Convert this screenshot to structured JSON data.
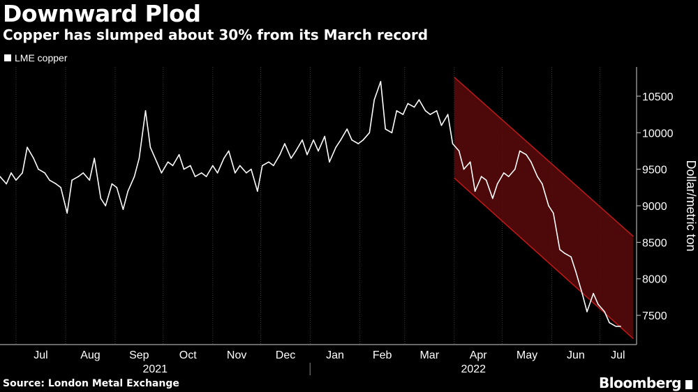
{
  "title": "Downward Plod",
  "subtitle": "Copper has slumped about 30% from its March record",
  "source": "Source: London Metal Exchange",
  "brand": "Bloomberg",
  "legend": "LME copper",
  "colors": {
    "background": "#000000",
    "line": "#ffffff",
    "channel_fill": "#5a0a0a",
    "channel_edge": "#c01818",
    "grid": "#3a3a3a"
  },
  "chart_data": {
    "type": "line",
    "title": "Downward Plod",
    "subtitle": "Copper has slumped about 30% from its March record",
    "ylabel": "Dollar/metric ton",
    "ylim": [
      7100,
      10900
    ],
    "yticks": [
      7500,
      8000,
      8500,
      9000,
      9500,
      10000,
      10500
    ],
    "y_axis_position": "right",
    "grid": "vertical dashed at month starts",
    "x_month_labels": [
      "Jul",
      "Aug",
      "Sep",
      "Oct",
      "Nov",
      "Dec",
      "Jan",
      "Feb",
      "Mar",
      "Apr",
      "May",
      "Jun",
      "Jul"
    ],
    "x_year_labels": [
      "2021",
      "2022"
    ],
    "x_month_starts": [
      "2021-07-01",
      "2021-08-01",
      "2021-09-01",
      "2021-10-01",
      "2021-11-01",
      "2021-12-01",
      "2022-01-01",
      "2022-02-01",
      "2022-03-01",
      "2022-04-01",
      "2022-05-01",
      "2022-06-01",
      "2022-07-01"
    ],
    "xlim": [
      "2021-06-21",
      "2022-07-24"
    ],
    "series": [
      {
        "name": "LME copper",
        "x": [
          "2021-06-21",
          "2021-06-25",
          "2021-06-28",
          "2021-07-01",
          "2021-07-05",
          "2021-07-08",
          "2021-07-12",
          "2021-07-15",
          "2021-07-19",
          "2021-07-22",
          "2021-07-26",
          "2021-07-29",
          "2021-08-02",
          "2021-08-05",
          "2021-08-09",
          "2021-08-12",
          "2021-08-16",
          "2021-08-19",
          "2021-08-23",
          "2021-08-26",
          "2021-08-30",
          "2021-09-02",
          "2021-09-06",
          "2021-09-09",
          "2021-09-13",
          "2021-09-16",
          "2021-09-20",
          "2021-09-23",
          "2021-09-27",
          "2021-09-30",
          "2021-10-04",
          "2021-10-07",
          "2021-10-11",
          "2021-10-14",
          "2021-10-18",
          "2021-10-21",
          "2021-10-25",
          "2021-10-28",
          "2021-11-01",
          "2021-11-04",
          "2021-11-08",
          "2021-11-11",
          "2021-11-15",
          "2021-11-18",
          "2021-11-22",
          "2021-11-25",
          "2021-11-29",
          "2021-12-02",
          "2021-12-06",
          "2021-12-09",
          "2021-12-13",
          "2021-12-16",
          "2021-12-20",
          "2021-12-23",
          "2021-12-27",
          "2021-12-30",
          "2022-01-03",
          "2022-01-06",
          "2022-01-10",
          "2022-01-13",
          "2022-01-17",
          "2022-01-20",
          "2022-01-24",
          "2022-01-27",
          "2022-01-31",
          "2022-02-03",
          "2022-02-07",
          "2022-02-10",
          "2022-02-14",
          "2022-02-17",
          "2022-02-21",
          "2022-02-24",
          "2022-02-28",
          "2022-03-03",
          "2022-03-07",
          "2022-03-10",
          "2022-03-14",
          "2022-03-17",
          "2022-03-21",
          "2022-03-24",
          "2022-03-28",
          "2022-03-31",
          "2022-04-04",
          "2022-04-07",
          "2022-04-11",
          "2022-04-14",
          "2022-04-18",
          "2022-04-21",
          "2022-04-25",
          "2022-04-28",
          "2022-05-02",
          "2022-05-05",
          "2022-05-09",
          "2022-05-12",
          "2022-05-16",
          "2022-05-19",
          "2022-05-23",
          "2022-05-26",
          "2022-05-30",
          "2022-06-02",
          "2022-06-06",
          "2022-06-09",
          "2022-06-13",
          "2022-06-16",
          "2022-06-20",
          "2022-06-23",
          "2022-06-27",
          "2022-06-30",
          "2022-07-04",
          "2022-07-07",
          "2022-07-11",
          "2022-07-14"
        ],
        "y": [
          9400,
          9300,
          9450,
          9350,
          9450,
          9800,
          9650,
          9500,
          9450,
          9350,
          9300,
          9250,
          8900,
          9350,
          9400,
          9450,
          9350,
          9650,
          9100,
          9000,
          9300,
          9250,
          8950,
          9200,
          9400,
          9650,
          10300,
          9800,
          9600,
          9450,
          9600,
          9550,
          9700,
          9500,
          9550,
          9400,
          9450,
          9400,
          9550,
          9450,
          9650,
          9750,
          9450,
          9550,
          9450,
          9500,
          9200,
          9550,
          9600,
          9550,
          9700,
          9850,
          9650,
          9750,
          9900,
          9700,
          9900,
          9750,
          9950,
          9600,
          9800,
          9900,
          10050,
          9900,
          9850,
          9900,
          10000,
          10450,
          10700,
          10050,
          10000,
          10300,
          10250,
          10400,
          10350,
          10450,
          10300,
          10250,
          10300,
          10100,
          10250,
          9850,
          9750,
          9500,
          9600,
          9200,
          9400,
          9350,
          9100,
          9300,
          9450,
          9400,
          9500,
          9750,
          9700,
          9600,
          9400,
          9300,
          9000,
          8900,
          8400,
          8350,
          8300,
          8100,
          7800,
          7550,
          7800,
          7650,
          7550,
          7400,
          7350,
          7350
        ]
      }
    ],
    "annotations": [
      {
        "type": "downward channel",
        "from": "2022-04-01",
        "to": "2022-07-22",
        "upper_from": 10760,
        "upper_to": 8580,
        "lower_from": 9380,
        "lower_to": 7180
      }
    ]
  }
}
